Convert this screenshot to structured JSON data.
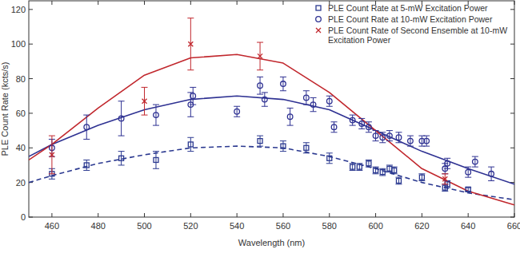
{
  "chart_data": {
    "type": "scatter",
    "x_label": "Wavelength (nm)",
    "y_label": "PLE Count Rate (kcts/s)",
    "xlim": [
      450,
      660
    ],
    "ylim": [
      0,
      125
    ],
    "xticks": [
      460,
      480,
      500,
      520,
      540,
      560,
      580,
      600,
      620,
      640,
      660
    ],
    "yticks": [
      0,
      20,
      40,
      60,
      80,
      100,
      120
    ],
    "grid": false,
    "legend": "upper right",
    "series": [
      {
        "name": "PLE Count Rate at 5-mW Excitation Power",
        "type": "scatter",
        "marker": "square",
        "color": "#2b3990",
        "x": [
          460,
          475,
          490,
          505,
          520,
          550,
          560,
          570,
          580,
          590,
          593,
          597,
          600,
          603,
          606,
          608,
          610,
          620,
          630,
          631,
          640
        ],
        "values": [
          25,
          30,
          34,
          33,
          42,
          44,
          41,
          40,
          34,
          29,
          29,
          31,
          27,
          26,
          28,
          27,
          21,
          23,
          17,
          19,
          16
        ],
        "errors": [
          3,
          3,
          4,
          5,
          4,
          3,
          3,
          3,
          3,
          2,
          2,
          2,
          2,
          2,
          2,
          2,
          2,
          2,
          2,
          2,
          1
        ]
      },
      {
        "name": "PLE Count Rate at 10-mW Excitation Power",
        "type": "scatter",
        "marker": "circle",
        "color": "#2e3192",
        "x": [
          460,
          475,
          490,
          505,
          520,
          521,
          540,
          550,
          552,
          560,
          563,
          570,
          573,
          580,
          582,
          590,
          594,
          597,
          600,
          603,
          606,
          610,
          615,
          620,
          622,
          630,
          631,
          640,
          643,
          650
        ],
        "values": [
          40,
          52,
          57,
          59,
          65,
          70,
          61,
          76,
          68,
          77,
          58,
          69,
          65,
          67,
          52,
          56,
          54,
          52,
          47,
          46,
          47,
          46,
          44,
          44,
          44,
          28,
          31,
          26,
          32,
          25
        ],
        "errors": [
          5,
          7,
          10,
          6,
          7,
          5,
          3,
          5,
          4,
          4,
          5,
          4,
          4,
          3,
          3,
          3,
          3,
          3,
          3,
          3,
          3,
          3,
          3,
          3,
          3,
          3,
          3,
          3,
          3,
          4
        ]
      },
      {
        "name": "PLE Count Rate of Second Ensemble at 10-mW Excitation Power",
        "type": "scatter",
        "marker": "x",
        "color": "#c1272d",
        "x": [
          460,
          500,
          520,
          550,
          630
        ],
        "values": [
          36,
          67,
          100,
          93,
          22
        ],
        "errors": [
          11,
          8,
          15,
          8,
          3
        ]
      },
      {
        "type": "line",
        "line_style": "dashed",
        "color": "#2b3990",
        "x": [
          450,
          460,
          480,
          500,
          520,
          540,
          560,
          580,
          600,
          620,
          640,
          660
        ],
        "values": [
          20,
          24,
          31,
          36,
          40,
          41,
          40,
          35,
          28,
          20,
          14,
          10
        ]
      },
      {
        "type": "line",
        "line_style": "solid",
        "color": "#2e3192",
        "x": [
          450,
          460,
          480,
          500,
          520,
          540,
          560,
          580,
          600,
          620,
          640,
          660
        ],
        "values": [
          35,
          42,
          53,
          62,
          68,
          70,
          68,
          62,
          50,
          38,
          28,
          19
        ]
      },
      {
        "type": "line",
        "line_style": "solid",
        "color": "#c1272d",
        "x": [
          450,
          460,
          480,
          500,
          520,
          540,
          560,
          580,
          600,
          620,
          640,
          660
        ],
        "values": [
          33,
          42,
          63,
          82,
          92,
          94,
          89,
          72,
          50,
          28,
          15,
          7
        ]
      }
    ]
  }
}
